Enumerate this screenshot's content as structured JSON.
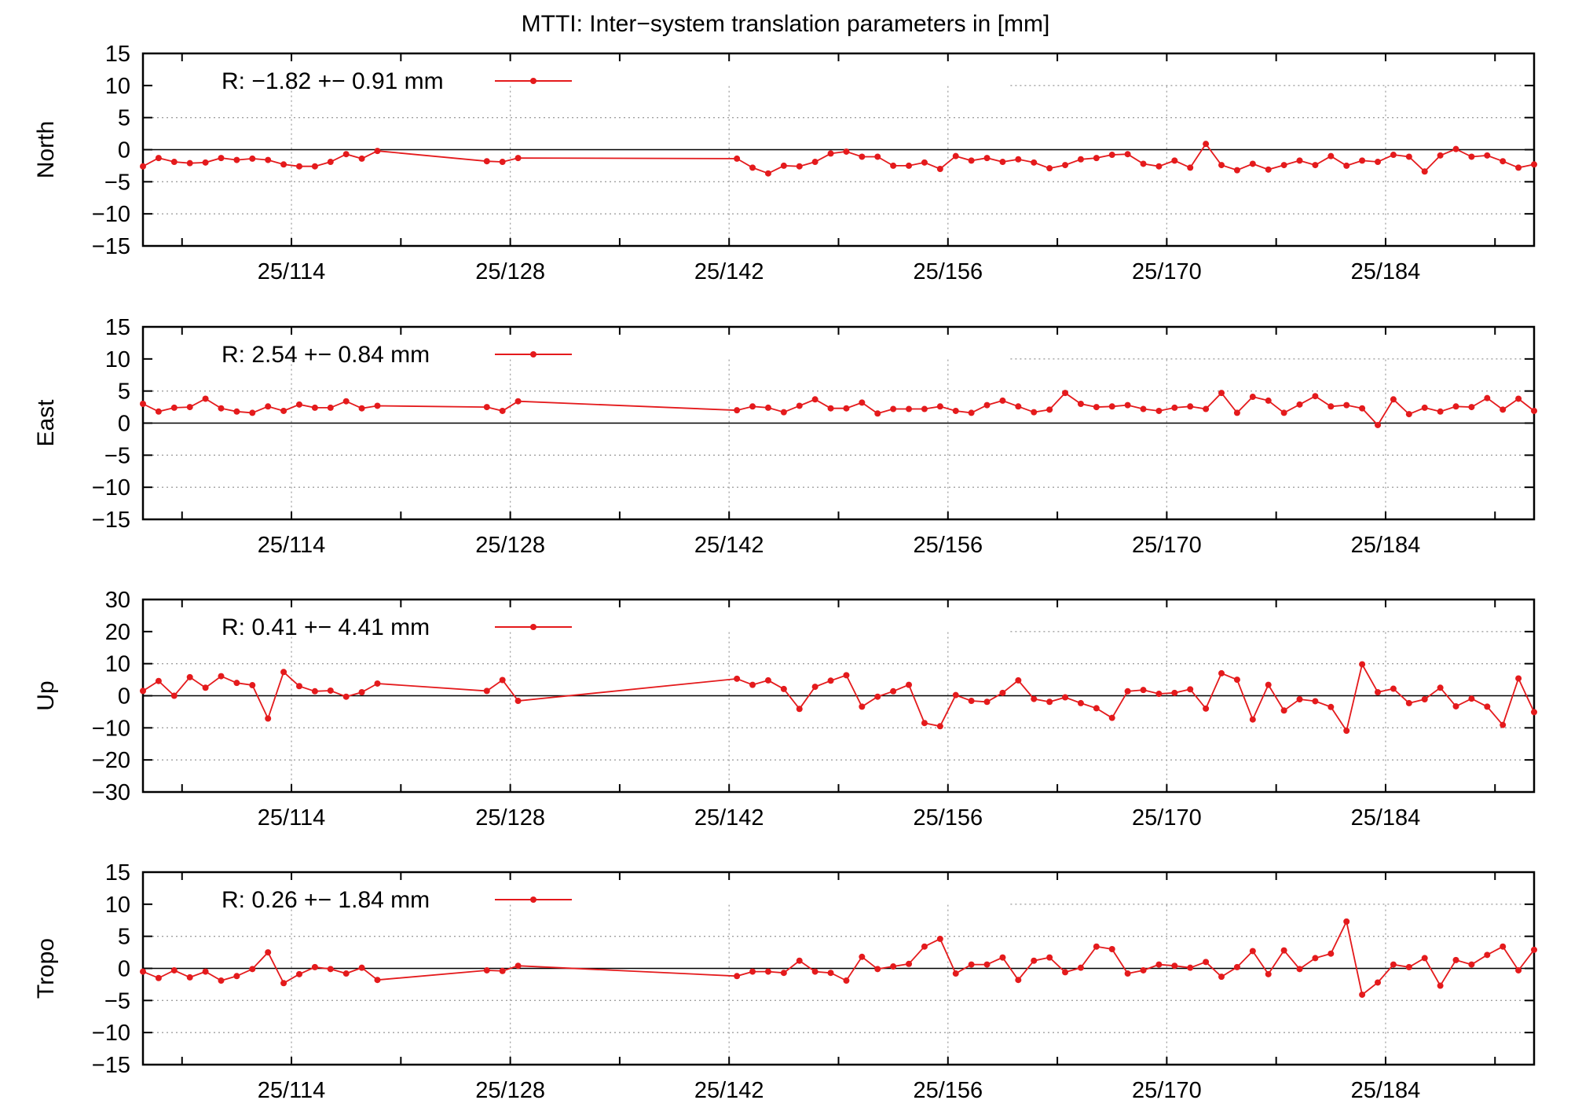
{
  "title": "MTTI: Inter−system translation parameters in [mm]",
  "colors": {
    "series": "#e41a1c",
    "axis": "#000000",
    "grid": "#a0a0a0"
  },
  "x_ticks": [
    {
      "day": 114,
      "label": "25/114"
    },
    {
      "day": 128,
      "label": "25/128"
    },
    {
      "day": 142,
      "label": "25/142"
    },
    {
      "day": 156,
      "label": "25/156"
    },
    {
      "day": 170,
      "label": "25/170"
    },
    {
      "day": 184,
      "label": "25/184"
    }
  ],
  "chart_data": [
    {
      "type": "line",
      "ylabel": "North",
      "xlim": [
        104.5,
        193.5
      ],
      "ylim": [
        -15,
        15
      ],
      "yticks": [
        15,
        10,
        5,
        0,
        -5,
        -10,
        -15
      ],
      "legend": "R:  −1.82 +− 0.91 mm",
      "grid": true,
      "x_day": [
        104.5,
        105.5,
        106.5,
        107.5,
        108.5,
        109.5,
        110.5,
        111.5,
        112.5,
        113.5,
        114.5,
        115.5,
        116.5,
        117.5,
        118.5,
        119.5,
        126.5,
        127.5,
        128.5,
        142.5,
        143.5,
        144.5,
        145.5,
        146.5,
        147.5,
        148.5,
        149.5,
        150.5,
        151.5,
        152.5,
        153.5,
        154.5,
        155.5,
        156.5,
        157.5,
        158.5,
        159.5,
        160.5,
        161.5,
        162.5,
        163.5,
        164.5,
        165.5,
        166.5,
        167.5,
        168.5,
        169.5,
        170.5,
        171.5,
        172.5,
        173.5,
        174.5,
        175.5,
        176.5,
        177.5,
        178.5,
        179.5,
        180.5,
        181.5,
        182.5,
        183.5,
        184.5,
        185.5,
        186.5,
        187.5,
        188.5,
        189.5,
        190.5,
        191.5,
        192.5,
        193.5
      ],
      "y": [
        -2.6,
        -1.3,
        -1.9,
        -2.1,
        -2.0,
        -1.3,
        -1.6,
        -1.4,
        -1.6,
        -2.3,
        -2.6,
        -2.6,
        -1.9,
        -0.7,
        -1.4,
        -0.2,
        -1.8,
        -1.9,
        -1.3,
        -1.4,
        -2.8,
        -3.7,
        -2.5,
        -2.6,
        -1.9,
        -0.6,
        -0.3,
        -1.1,
        -1.1,
        -2.5,
        -2.5,
        -2.0,
        -3.0,
        -1.0,
        -1.7,
        -1.3,
        -1.9,
        -1.5,
        -2.0,
        -2.9,
        -2.4,
        -1.5,
        -1.3,
        -0.8,
        -0.7,
        -2.2,
        -2.6,
        -1.7,
        -2.8,
        0.9,
        -2.4,
        -3.2,
        -2.2,
        -3.1,
        -2.4,
        -1.7,
        -2.4,
        -1.0,
        -2.5,
        -1.7,
        -1.9,
        -0.8,
        -1.1,
        -3.4,
        -0.9,
        0.1,
        -1.1,
        -0.9,
        -1.8,
        -2.8,
        -2.3
      ]
    },
    {
      "type": "line",
      "ylabel": "East",
      "xlim": [
        104.5,
        193.5
      ],
      "ylim": [
        -15,
        15
      ],
      "yticks": [
        15,
        10,
        5,
        0,
        -5,
        -10,
        -15
      ],
      "legend": "R:   2.54 +− 0.84 mm",
      "grid": true,
      "x_day": [
        104.5,
        105.5,
        106.5,
        107.5,
        108.5,
        109.5,
        110.5,
        111.5,
        112.5,
        113.5,
        114.5,
        115.5,
        116.5,
        117.5,
        118.5,
        119.5,
        126.5,
        127.5,
        128.5,
        142.5,
        143.5,
        144.5,
        145.5,
        146.5,
        147.5,
        148.5,
        149.5,
        150.5,
        151.5,
        152.5,
        153.5,
        154.5,
        155.5,
        156.5,
        157.5,
        158.5,
        159.5,
        160.5,
        161.5,
        162.5,
        163.5,
        164.5,
        165.5,
        166.5,
        167.5,
        168.5,
        169.5,
        170.5,
        171.5,
        172.5,
        173.5,
        174.5,
        175.5,
        176.5,
        177.5,
        178.5,
        179.5,
        180.5,
        181.5,
        182.5,
        183.5,
        184.5,
        185.5,
        186.5,
        187.5,
        188.5,
        189.5,
        190.5,
        191.5,
        192.5,
        193.5
      ],
      "y": [
        3.0,
        1.8,
        2.4,
        2.5,
        3.8,
        2.3,
        1.8,
        1.6,
        2.6,
        1.9,
        2.9,
        2.4,
        2.4,
        3.4,
        2.3,
        2.7,
        2.5,
        1.9,
        3.4,
        2.0,
        2.6,
        2.4,
        1.7,
        2.7,
        3.7,
        2.3,
        2.3,
        3.2,
        1.5,
        2.2,
        2.2,
        2.2,
        2.6,
        1.9,
        1.6,
        2.8,
        3.5,
        2.6,
        1.7,
        2.1,
        4.7,
        3.0,
        2.5,
        2.6,
        2.8,
        2.2,
        1.9,
        2.4,
        2.6,
        2.2,
        4.7,
        1.6,
        4.1,
        3.5,
        1.6,
        2.9,
        4.2,
        2.6,
        2.8,
        2.3,
        -0.3,
        3.7,
        1.4,
        2.4,
        1.8,
        2.6,
        2.5,
        3.9,
        2.1,
        3.8,
        1.9
      ]
    },
    {
      "type": "line",
      "ylabel": "Up",
      "xlim": [
        104.5,
        193.5
      ],
      "ylim": [
        -30,
        30
      ],
      "yticks": [
        30,
        20,
        10,
        0,
        -10,
        -20,
        -30
      ],
      "legend": "R:   0.41 +− 4.41 mm",
      "grid": true,
      "x_day": [
        104.5,
        105.5,
        106.5,
        107.5,
        108.5,
        109.5,
        110.5,
        111.5,
        112.5,
        113.5,
        114.5,
        115.5,
        116.5,
        117.5,
        118.5,
        119.5,
        126.5,
        127.5,
        128.5,
        142.5,
        143.5,
        144.5,
        145.5,
        146.5,
        147.5,
        148.5,
        149.5,
        150.5,
        151.5,
        152.5,
        153.5,
        154.5,
        155.5,
        156.5,
        157.5,
        158.5,
        159.5,
        160.5,
        161.5,
        162.5,
        163.5,
        164.5,
        165.5,
        166.5,
        167.5,
        168.5,
        169.5,
        170.5,
        171.5,
        172.5,
        173.5,
        174.5,
        175.5,
        176.5,
        177.5,
        178.5,
        179.5,
        180.5,
        181.5,
        182.5,
        183.5,
        184.5,
        185.5,
        186.5,
        187.5,
        188.5,
        189.5,
        190.5,
        191.5,
        192.5,
        193.5
      ],
      "y": [
        1.5,
        4.6,
        0.0,
        5.8,
        2.5,
        6.1,
        4.0,
        3.3,
        -7.1,
        7.4,
        3.0,
        1.4,
        1.6,
        -0.3,
        1.1,
        3.8,
        1.5,
        4.9,
        -1.6,
        5.3,
        3.4,
        4.8,
        2.1,
        -4.1,
        2.8,
        4.7,
        6.4,
        -3.4,
        -0.3,
        1.4,
        3.4,
        -8.5,
        -9.5,
        0.2,
        -1.6,
        -1.9,
        0.9,
        4.8,
        -1.0,
        -1.9,
        -0.5,
        -2.3,
        -3.9,
        -6.9,
        1.4,
        1.8,
        0.6,
        0.9,
        2.0,
        -4.0,
        7.0,
        5.0,
        -7.4,
        3.4,
        -4.6,
        -1.1,
        -1.7,
        -3.5,
        -10.9,
        9.8,
        1.1,
        2.2,
        -2.3,
        -1.1,
        2.5,
        -3.3,
        -0.9,
        -3.4,
        -9.1,
        5.4,
        -5.1
      ]
    },
    {
      "type": "line",
      "ylabel": "Tropo",
      "xlim": [
        104.5,
        193.5
      ],
      "ylim": [
        -15,
        15
      ],
      "yticks": [
        15,
        10,
        5,
        0,
        -5,
        -10,
        -15
      ],
      "legend": "R:   0.26 +− 1.84 mm",
      "grid": true,
      "x_day": [
        104.5,
        105.5,
        106.5,
        107.5,
        108.5,
        109.5,
        110.5,
        111.5,
        112.5,
        113.5,
        114.5,
        115.5,
        116.5,
        117.5,
        118.5,
        119.5,
        126.5,
        127.5,
        128.5,
        142.5,
        143.5,
        144.5,
        145.5,
        146.5,
        147.5,
        148.5,
        149.5,
        150.5,
        151.5,
        152.5,
        153.5,
        154.5,
        155.5,
        156.5,
        157.5,
        158.5,
        159.5,
        160.5,
        161.5,
        162.5,
        163.5,
        164.5,
        165.5,
        166.5,
        167.5,
        168.5,
        169.5,
        170.5,
        171.5,
        172.5,
        173.5,
        174.5,
        175.5,
        176.5,
        177.5,
        178.5,
        179.5,
        180.5,
        181.5,
        182.5,
        183.5,
        184.5,
        185.5,
        186.5,
        187.5,
        188.5,
        189.5,
        190.5,
        191.5,
        192.5,
        193.5
      ],
      "y": [
        -0.5,
        -1.5,
        -0.3,
        -1.4,
        -0.5,
        -1.9,
        -1.2,
        -0.1,
        2.5,
        -2.3,
        -0.9,
        0.2,
        -0.1,
        -0.8,
        0.1,
        -1.8,
        -0.3,
        -0.4,
        0.4,
        -1.2,
        -0.5,
        -0.5,
        -0.7,
        1.2,
        -0.5,
        -0.7,
        -1.9,
        1.8,
        -0.1,
        0.3,
        0.7,
        3.4,
        4.6,
        -0.8,
        0.6,
        0.6,
        1.7,
        -1.8,
        1.2,
        1.7,
        -0.6,
        0.1,
        3.4,
        3.0,
        -0.8,
        -0.3,
        0.6,
        0.4,
        0.1,
        1.0,
        -1.3,
        0.2,
        2.7,
        -0.9,
        2.8,
        -0.1,
        1.6,
        2.3,
        7.3,
        -4.1,
        -2.2,
        0.6,
        0.2,
        1.6,
        -2.7,
        1.3,
        0.6,
        2.1,
        3.4,
        -0.3,
        2.9
      ]
    }
  ]
}
